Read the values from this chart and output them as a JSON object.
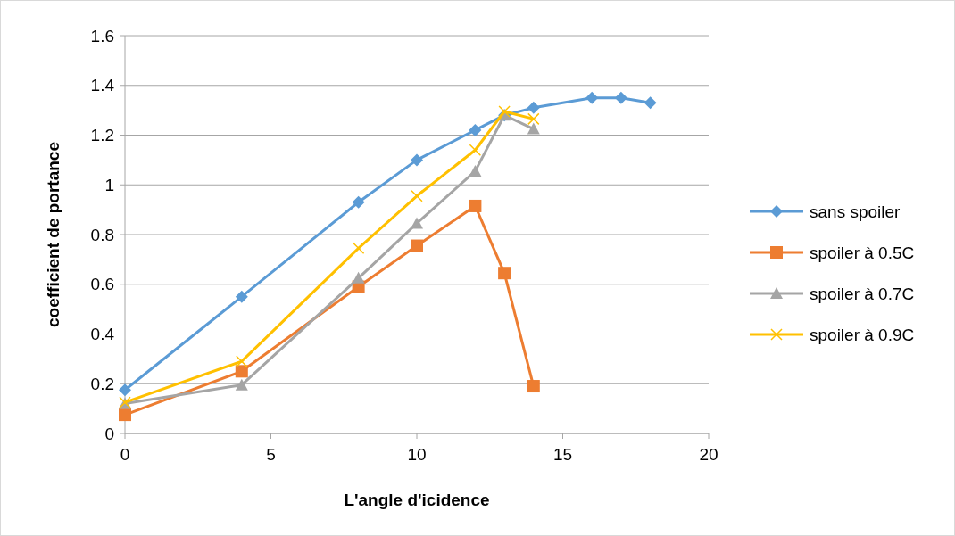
{
  "chart_data": {
    "type": "line",
    "xlabel": "L'angle d'icidence",
    "ylabel": "coefficient de portance",
    "xlim": [
      0,
      20
    ],
    "xticks": [
      0,
      5,
      10,
      15,
      20
    ],
    "ylim": [
      0,
      1.6
    ],
    "yticks": [
      0,
      {
        "value": 0.2,
        "label": "0.2"
      },
      {
        "value": 0.4,
        "label": "0.4"
      },
      {
        "value": 0.6,
        "label": "0.6"
      },
      {
        "value": 0.8,
        "label": "0.8"
      },
      1,
      {
        "value": 1.2,
        "label": "1.2"
      },
      {
        "value": 1.4,
        "label": "1.4"
      },
      {
        "value": 1.6,
        "label": "1.6"
      }
    ],
    "grid": "y",
    "legend": "right",
    "series": [
      {
        "name": "sans spoiler",
        "color": "#5b9bd5",
        "marker": "diamond",
        "x": [
          0,
          4,
          8,
          10,
          12,
          13,
          14,
          16,
          17,
          18
        ],
        "values": [
          0.175,
          0.55,
          0.93,
          1.1,
          1.22,
          1.28,
          1.31,
          1.35,
          1.35,
          1.33
        ]
      },
      {
        "name": "spoiler à 0.5C",
        "color": "#ed7d31",
        "marker": "square",
        "x": [
          0,
          4,
          8,
          10,
          12,
          13,
          14
        ],
        "values": [
          0.075,
          0.25,
          0.59,
          0.755,
          0.915,
          0.645,
          0.19
        ]
      },
      {
        "name": "spoiler à 0.7C",
        "color": "#a5a5a5",
        "marker": "triangle",
        "x": [
          0,
          4,
          8,
          10,
          12,
          13,
          14
        ],
        "values": [
          0.12,
          0.195,
          0.625,
          0.845,
          1.055,
          1.28,
          1.225
        ]
      },
      {
        "name": "spoiler à 0.9C",
        "color": "#ffc000",
        "marker": "cross",
        "x": [
          0,
          4,
          8,
          10,
          12,
          13,
          14
        ],
        "values": [
          0.125,
          0.29,
          0.745,
          0.955,
          1.14,
          1.295,
          1.265
        ]
      }
    ]
  }
}
